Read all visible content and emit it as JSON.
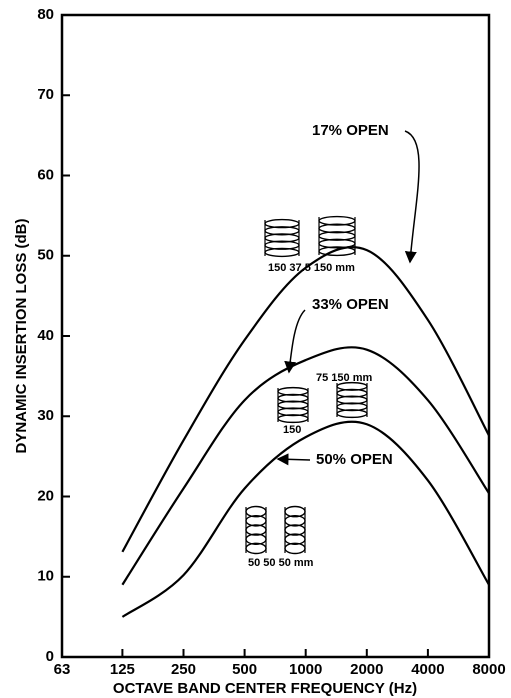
{
  "chart_data": {
    "type": "line",
    "xlabel": "OCTAVE BAND CENTER FREQUENCY (Hz)",
    "ylabel": "DYNAMIC INSERTION LOSS (dB)",
    "x": [
      125,
      250,
      500,
      1000,
      2000,
      4000,
      8000
    ],
    "series": [
      {
        "name": "17% OPEN",
        "color": "#000000",
        "values": [
          13.1,
          27,
          39.5,
          48.5,
          50.7,
          42,
          27.6
        ]
      },
      {
        "name": "33% OPEN",
        "color": "#000000",
        "values": [
          9,
          21,
          32,
          37,
          38.3,
          32,
          20.4
        ]
      },
      {
        "name": "50% OPEN",
        "color": "#000000",
        "values": [
          5,
          10.2,
          21,
          27.4,
          29,
          22,
          9
        ]
      }
    ],
    "annotations": [
      "150 37.5 150 mm",
      "75 150 mm",
      "150",
      "50 50 50 mm"
    ],
    "xscale": "log",
    "xlim": [
      63,
      8000
    ],
    "xticks": [
      63,
      125,
      250,
      500,
      1000,
      2000,
      4000,
      8000
    ],
    "ylim": [
      0,
      80
    ],
    "yticks": [
      0,
      10,
      20,
      30,
      40,
      50,
      60,
      70,
      80
    ]
  }
}
